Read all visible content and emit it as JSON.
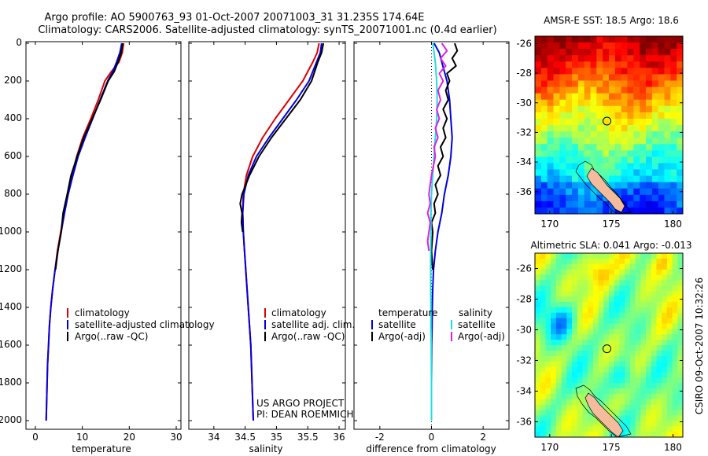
{
  "header": {
    "title_line1": "Argo profile: AO 5900763_93 01-Oct-2007 20071003_31 31.235S 174.64E",
    "title_line2": "Climatology: CARS2006. Satellite-adjusted climatology: synTS_20071001.nc (0.4d earlier)"
  },
  "colors": {
    "climatology": "#dd0000",
    "satellite": "#0000dd",
    "argo": "#000000",
    "salinity_satellite": "#22dddd",
    "salinity_argo": "#dd22dd",
    "land": "#f4bc9c"
  },
  "y_axis": {
    "ticks": [
      "0",
      "200",
      "400",
      "600",
      "800",
      "1000",
      "1200",
      "1400",
      "1600",
      "1800",
      "2000"
    ]
  },
  "chart_data": [
    {
      "type": "line",
      "name": "temperature",
      "xlabel": "temperature",
      "xlim": [
        -2,
        31
      ],
      "ylim": [
        2050,
        0
      ],
      "x_ticks": [
        "0",
        "10",
        "20",
        "30"
      ],
      "x_tick_values": [
        0,
        10,
        20,
        30
      ],
      "legend": [
        "climatology",
        "satellite-adjusted climatology",
        "Argo(..raw -QC)"
      ],
      "series": [
        {
          "name": "climatology",
          "color_key": "climatology",
          "points": [
            [
              18.8,
              0
            ],
            [
              18.5,
              50
            ],
            [
              17.8,
              100
            ],
            [
              16.2,
              150
            ],
            [
              14.8,
              200
            ],
            [
              13.4,
              300
            ],
            [
              11.8,
              400
            ],
            [
              10.1,
              500
            ],
            [
              8.8,
              600
            ],
            [
              7.8,
              700
            ],
            [
              6.9,
              800
            ],
            [
              6.1,
              900
            ],
            [
              5.4,
              1000
            ],
            [
              4.7,
              1100
            ],
            [
              4.2,
              1200
            ],
            [
              3.7,
              1300
            ],
            [
              3.3,
              1400
            ],
            [
              3.0,
              1500
            ],
            [
              2.8,
              1600
            ],
            [
              2.6,
              1700
            ],
            [
              2.5,
              1800
            ],
            [
              2.4,
              1900
            ],
            [
              2.3,
              2000
            ]
          ]
        },
        {
          "name": "satellite-adjusted climatology",
          "color_key": "satellite",
          "points": [
            [
              18.4,
              0
            ],
            [
              18.0,
              50
            ],
            [
              17.3,
              100
            ],
            [
              16.5,
              150
            ],
            [
              15.4,
              200
            ],
            [
              13.8,
              300
            ],
            [
              12.2,
              400
            ],
            [
              10.6,
              500
            ],
            [
              9.1,
              600
            ],
            [
              8.0,
              700
            ],
            [
              7.0,
              800
            ],
            [
              6.2,
              900
            ],
            [
              5.5,
              1000
            ],
            [
              4.8,
              1100
            ],
            [
              4.2,
              1200
            ],
            [
              3.7,
              1300
            ],
            [
              3.3,
              1400
            ],
            [
              3.0,
              1500
            ],
            [
              2.8,
              1600
            ],
            [
              2.6,
              1700
            ],
            [
              2.5,
              1800
            ],
            [
              2.4,
              1900
            ],
            [
              2.3,
              2000
            ]
          ]
        },
        {
          "name": "Argo(..raw -QC)",
          "color_key": "argo",
          "points": [
            [
              18.6,
              0
            ],
            [
              18.3,
              50
            ],
            [
              17.6,
              100
            ],
            [
              16.8,
              150
            ],
            [
              15.5,
              200
            ],
            [
              13.9,
              300
            ],
            [
              12.1,
              400
            ],
            [
              10.3,
              500
            ],
            [
              8.9,
              600
            ],
            [
              7.6,
              700
            ],
            [
              6.8,
              800
            ],
            [
              5.9,
              900
            ],
            [
              5.5,
              1000
            ],
            [
              4.8,
              1100
            ],
            [
              4.3,
              1200
            ]
          ]
        }
      ]
    },
    {
      "type": "line",
      "name": "salinity",
      "xlabel": "salinity",
      "xlim": [
        33.6,
        36.1
      ],
      "ylim": [
        2050,
        0
      ],
      "x_ticks": [
        "34",
        "34.5",
        "35",
        "35.5",
        "36"
      ],
      "x_tick_values": [
        34,
        34.5,
        35,
        35.5,
        36
      ],
      "legend": [
        "climatology",
        "satellite adj. clim.",
        "Argo(..raw -QC)"
      ],
      "annotation": [
        "US ARGO PROJECT",
        "PI: DEAN ROEMMICH"
      ],
      "series": [
        {
          "name": "climatology",
          "color_key": "climatology",
          "points": [
            [
              35.68,
              0
            ],
            [
              35.65,
              50
            ],
            [
              35.58,
              100
            ],
            [
              35.42,
              200
            ],
            [
              35.2,
              300
            ],
            [
              34.98,
              400
            ],
            [
              34.78,
              500
            ],
            [
              34.62,
              600
            ],
            [
              34.52,
              700
            ],
            [
              34.47,
              800
            ],
            [
              34.46,
              900
            ],
            [
              34.47,
              1000
            ],
            [
              34.49,
              1100
            ],
            [
              34.51,
              1200
            ],
            [
              34.53,
              1300
            ],
            [
              34.55,
              1400
            ],
            [
              34.57,
              1500
            ],
            [
              34.59,
              1600
            ],
            [
              34.6,
              1700
            ],
            [
              34.61,
              1800
            ],
            [
              34.62,
              1900
            ],
            [
              34.63,
              2000
            ]
          ]
        },
        {
          "name": "satellite adj. clim.",
          "color_key": "satellite",
          "points": [
            [
              35.72,
              0
            ],
            [
              35.7,
              50
            ],
            [
              35.64,
              100
            ],
            [
              35.52,
              200
            ],
            [
              35.32,
              300
            ],
            [
              35.1,
              400
            ],
            [
              34.88,
              500
            ],
            [
              34.68,
              600
            ],
            [
              34.55,
              700
            ],
            [
              34.48,
              800
            ],
            [
              34.46,
              900
            ],
            [
              34.47,
              1000
            ],
            [
              34.49,
              1100
            ],
            [
              34.51,
              1200
            ],
            [
              34.53,
              1300
            ],
            [
              34.55,
              1400
            ],
            [
              34.57,
              1500
            ],
            [
              34.59,
              1600
            ],
            [
              34.6,
              1700
            ],
            [
              34.61,
              1800
            ],
            [
              34.62,
              1900
            ],
            [
              34.63,
              2000
            ]
          ]
        },
        {
          "name": "Argo(..raw -QC)",
          "color_key": "argo",
          "points": [
            [
              35.75,
              0
            ],
            [
              35.72,
              50
            ],
            [
              35.66,
              100
            ],
            [
              35.56,
              200
            ],
            [
              35.38,
              300
            ],
            [
              35.15,
              400
            ],
            [
              34.92,
              500
            ],
            [
              34.72,
              600
            ],
            [
              34.57,
              700
            ],
            [
              34.45,
              800
            ],
            [
              34.42,
              850
            ],
            [
              34.45,
              900
            ],
            [
              34.44,
              950
            ],
            [
              34.46,
              1000
            ]
          ]
        }
      ]
    },
    {
      "type": "line",
      "name": "difference from climatology",
      "xlabel": "difference from climatology",
      "xlim": [
        -3,
        3
      ],
      "ylim": [
        2050,
        0
      ],
      "x_ticks": [
        "-2",
        "0",
        "2"
      ],
      "x_tick_values": [
        -2,
        0,
        2
      ],
      "legend_headers": [
        "temperature",
        "salinity"
      ],
      "legend": [
        "satellite",
        "Argo(-adj)",
        "satellite",
        "Argo(-adj)"
      ],
      "series": [
        {
          "name": "temperature satellite",
          "color_key": "satellite",
          "points": [
            [
              0.1,
              0
            ],
            [
              0.3,
              50
            ],
            [
              0.4,
              100
            ],
            [
              0.5,
              150
            ],
            [
              0.6,
              200
            ],
            [
              0.7,
              300
            ],
            [
              0.75,
              400
            ],
            [
              0.8,
              500
            ],
            [
              0.75,
              600
            ],
            [
              0.65,
              700
            ],
            [
              0.5,
              800
            ],
            [
              0.4,
              900
            ],
            [
              0.25,
              1000
            ],
            [
              0.15,
              1100
            ],
            [
              0.08,
              1200
            ],
            [
              0.05,
              1300
            ],
            [
              0.03,
              1400
            ],
            [
              0.02,
              1500
            ],
            [
              0.01,
              1600
            ],
            [
              0,
              1800
            ],
            [
              0,
              2000
            ]
          ]
        },
        {
          "name": "temperature Argo(-adj)",
          "color_key": "argo",
          "points": [
            [
              0.9,
              0
            ],
            [
              1.0,
              40
            ],
            [
              0.8,
              80
            ],
            [
              0.95,
              120
            ],
            [
              0.6,
              160
            ],
            [
              0.7,
              200
            ],
            [
              0.55,
              250
            ],
            [
              0.65,
              300
            ],
            [
              0.45,
              350
            ],
            [
              0.6,
              400
            ],
            [
              0.45,
              450
            ],
            [
              0.55,
              500
            ],
            [
              0.35,
              550
            ],
            [
              0.45,
              600
            ],
            [
              0.25,
              650
            ],
            [
              0.35,
              700
            ],
            [
              0.15,
              750
            ],
            [
              0.25,
              800
            ],
            [
              0.1,
              850
            ],
            [
              0.15,
              900
            ],
            [
              0,
              950
            ],
            [
              0.05,
              1000
            ],
            [
              0,
              1100
            ],
            [
              0.05,
              1200
            ]
          ]
        },
        {
          "name": "salinity satellite",
          "color_key": "salinity_satellite",
          "points": [
            [
              0.05,
              0
            ],
            [
              0.1,
              50
            ],
            [
              0.15,
              100
            ],
            [
              0.2,
              200
            ],
            [
              0.22,
              300
            ],
            [
              0.2,
              400
            ],
            [
              0.15,
              500
            ],
            [
              0.1,
              600
            ],
            [
              0.05,
              700
            ],
            [
              0,
              800
            ],
            [
              -0.02,
              900
            ],
            [
              -0.02,
              1000
            ],
            [
              -0.03,
              1100
            ],
            [
              -0.03,
              1200
            ],
            [
              -0.03,
              1300
            ],
            [
              -0.02,
              1400
            ],
            [
              -0.02,
              1500
            ],
            [
              -0.01,
              1600
            ],
            [
              0,
              1800
            ],
            [
              0,
              2000
            ]
          ]
        },
        {
          "name": "salinity Argo(-adj)",
          "color_key": "salinity_argo",
          "points": [
            [
              0.4,
              0
            ],
            [
              0.6,
              40
            ],
            [
              0.35,
              80
            ],
            [
              0.55,
              120
            ],
            [
              0.3,
              160
            ],
            [
              0.45,
              200
            ],
            [
              0.25,
              250
            ],
            [
              0.35,
              300
            ],
            [
              0.2,
              350
            ],
            [
              0.3,
              400
            ],
            [
              0.15,
              450
            ],
            [
              0.25,
              500
            ],
            [
              0.1,
              550
            ],
            [
              0.15,
              600
            ],
            [
              0,
              700
            ],
            [
              -0.1,
              800
            ],
            [
              -0.05,
              850
            ],
            [
              -0.15,
              900
            ],
            [
              -0.05,
              950
            ],
            [
              -0.1,
              1000
            ],
            [
              -0.15,
              1050
            ],
            [
              -0.1,
              1100
            ]
          ]
        }
      ]
    },
    {
      "type": "heatmap",
      "name": "AMSR-E SST",
      "title": "AMSR-E SST: 18.5 Argo: 18.6",
      "lon_range": [
        168.8,
        180.8
      ],
      "lat_range": [
        -37.5,
        -25.5
      ],
      "x_ticks": [
        "170",
        "175",
        "180"
      ],
      "x_tick_values": [
        170,
        175,
        180
      ],
      "y_ticks": [
        "-26",
        "-28",
        "-30",
        "-32",
        "-34",
        "-36"
      ],
      "y_tick_values": [
        -26,
        -28,
        -30,
        -32,
        -34,
        -36
      ],
      "marker": {
        "lon": 174.64,
        "lat": -31.235
      },
      "sst": 18.5,
      "argo": 18.6
    },
    {
      "type": "heatmap",
      "name": "Altimetric SLA",
      "title": "Altimetric SLA: 0.041 Argo: -0.013",
      "lon_range": [
        168.8,
        180.8
      ],
      "lat_range": [
        -37,
        -25
      ],
      "x_ticks": [
        "170",
        "175",
        "180"
      ],
      "x_tick_values": [
        170,
        175,
        180
      ],
      "y_ticks": [
        "-26",
        "-28",
        "-30",
        "-32",
        "-34",
        "-36"
      ],
      "y_tick_values": [
        -26,
        -28,
        -30,
        -32,
        -34,
        -36
      ],
      "marker": {
        "lon": 174.64,
        "lat": -31.235
      },
      "sla": 0.041,
      "argo": -0.013
    }
  ],
  "credit": "CSIRO 09-Oct-2007 10:32:26"
}
